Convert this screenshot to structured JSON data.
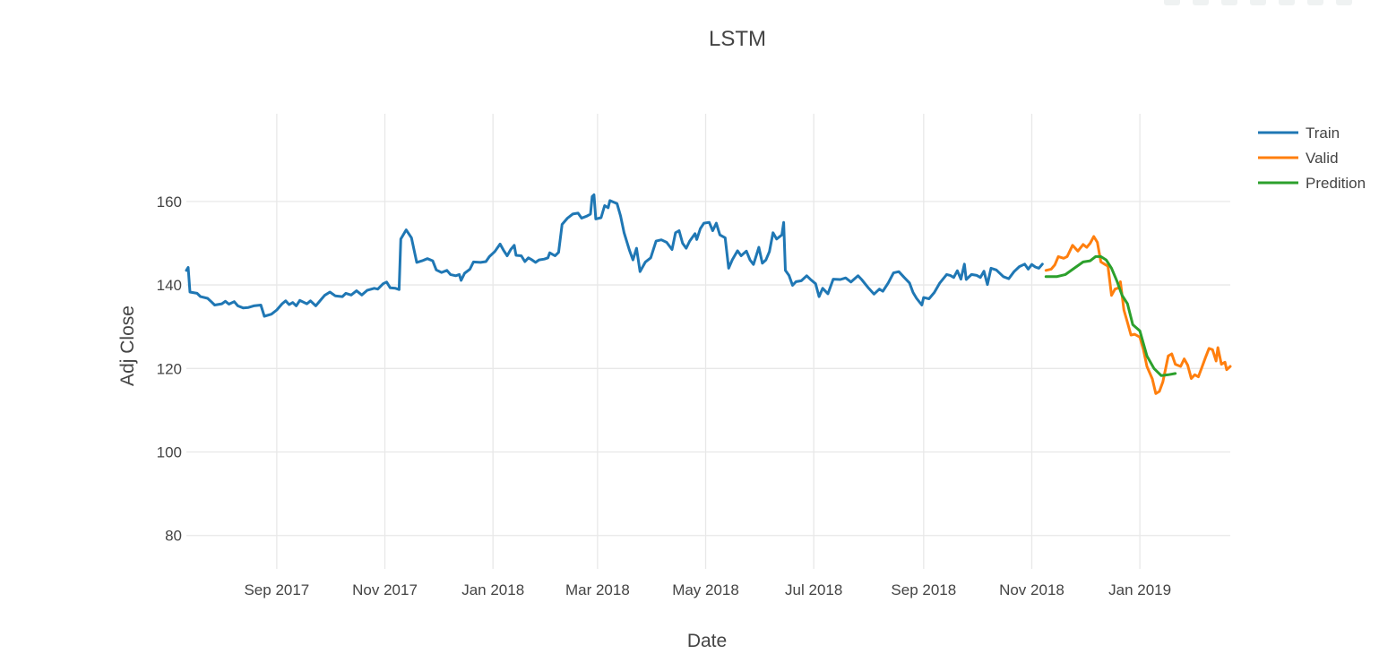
{
  "chart_data": {
    "type": "line",
    "title": "LSTM",
    "xlabel": "Date",
    "ylabel": "Adj Close",
    "x_range": [
      "2017-07-12",
      "2019-02-21"
    ],
    "ylim": [
      72,
      181
    ],
    "x_ticks": [
      {
        "date": "2017-09-01",
        "label": "Sep 2017"
      },
      {
        "date": "2017-11-01",
        "label": "Nov 2017"
      },
      {
        "date": "2018-01-01",
        "label": "Jan 2018"
      },
      {
        "date": "2018-03-01",
        "label": "Mar 2018"
      },
      {
        "date": "2018-05-01",
        "label": "May 2018"
      },
      {
        "date": "2018-07-01",
        "label": "Jul 2018"
      },
      {
        "date": "2018-09-01",
        "label": "Sep 2018"
      },
      {
        "date": "2018-11-01",
        "label": "Nov 2018"
      },
      {
        "date": "2019-01-01",
        "label": "Jan 2019"
      }
    ],
    "y_ticks": [
      80,
      100,
      120,
      140,
      160
    ],
    "grid": true,
    "legend_position": "top-right",
    "series": [
      {
        "name": "Train",
        "color": "#1f77b4",
        "points": [
          [
            "2017-07-12",
            143.5
          ],
          [
            "2017-07-13",
            144.2
          ],
          [
            "2017-07-14",
            138.3
          ],
          [
            "2017-07-18",
            138.0
          ],
          [
            "2017-07-20",
            137.2
          ],
          [
            "2017-07-24",
            136.8
          ],
          [
            "2017-07-26",
            136.0
          ],
          [
            "2017-07-28",
            135.2
          ],
          [
            "2017-08-01",
            135.5
          ],
          [
            "2017-08-03",
            136.1
          ],
          [
            "2017-08-05",
            135.4
          ],
          [
            "2017-08-08",
            136.0
          ],
          [
            "2017-08-10",
            135.0
          ],
          [
            "2017-08-13",
            134.5
          ],
          [
            "2017-08-16",
            134.6
          ],
          [
            "2017-08-19",
            135.0
          ],
          [
            "2017-08-23",
            135.2
          ],
          [
            "2017-08-25",
            132.5
          ],
          [
            "2017-08-29",
            133.0
          ],
          [
            "2017-09-01",
            134.0
          ],
          [
            "2017-09-04",
            135.5
          ],
          [
            "2017-09-06",
            136.2
          ],
          [
            "2017-09-08",
            135.3
          ],
          [
            "2017-09-10",
            135.8
          ],
          [
            "2017-09-12",
            135.0
          ],
          [
            "2017-09-14",
            136.3
          ],
          [
            "2017-09-18",
            135.5
          ],
          [
            "2017-09-20",
            136.2
          ],
          [
            "2017-09-23",
            135.0
          ],
          [
            "2017-09-26",
            136.5
          ],
          [
            "2017-09-28",
            137.5
          ],
          [
            "2017-10-01",
            138.3
          ],
          [
            "2017-10-04",
            137.4
          ],
          [
            "2017-10-08",
            137.2
          ],
          [
            "2017-10-10",
            138.0
          ],
          [
            "2017-10-13",
            137.6
          ],
          [
            "2017-10-16",
            138.6
          ],
          [
            "2017-10-19",
            137.6
          ],
          [
            "2017-10-22",
            138.7
          ],
          [
            "2017-10-26",
            139.2
          ],
          [
            "2017-10-28",
            139.0
          ],
          [
            "2017-10-31",
            140.3
          ],
          [
            "2017-11-02",
            140.7
          ],
          [
            "2017-11-04",
            139.3
          ],
          [
            "2017-11-07",
            139.2
          ],
          [
            "2017-11-09",
            138.9
          ],
          [
            "2017-11-10",
            151.0
          ],
          [
            "2017-11-13",
            153.2
          ],
          [
            "2017-11-16",
            151.3
          ],
          [
            "2017-11-19",
            145.4
          ],
          [
            "2017-11-22",
            145.8
          ],
          [
            "2017-11-25",
            146.3
          ],
          [
            "2017-11-28",
            145.8
          ],
          [
            "2017-11-30",
            143.6
          ],
          [
            "2017-12-03",
            143.0
          ],
          [
            "2017-12-06",
            143.5
          ],
          [
            "2017-12-08",
            142.5
          ],
          [
            "2017-12-11",
            142.2
          ],
          [
            "2017-12-13",
            142.5
          ],
          [
            "2017-12-14",
            141.1
          ],
          [
            "2017-12-16",
            142.8
          ],
          [
            "2017-12-19",
            143.8
          ],
          [
            "2017-12-21",
            145.5
          ],
          [
            "2017-12-25",
            145.4
          ],
          [
            "2017-12-28",
            145.6
          ],
          [
            "2017-12-30",
            146.8
          ],
          [
            "2018-01-02",
            148.0
          ],
          [
            "2018-01-05",
            149.8
          ],
          [
            "2018-01-07",
            148.3
          ],
          [
            "2018-01-09",
            147.0
          ],
          [
            "2018-01-11",
            148.5
          ],
          [
            "2018-01-13",
            149.5
          ],
          [
            "2018-01-14",
            147.1
          ],
          [
            "2018-01-17",
            147.0
          ],
          [
            "2018-01-19",
            145.6
          ],
          [
            "2018-01-21",
            146.5
          ],
          [
            "2018-01-23",
            146.0
          ],
          [
            "2018-01-25",
            145.4
          ],
          [
            "2018-01-27",
            146.0
          ],
          [
            "2018-01-30",
            146.2
          ],
          [
            "2018-02-01",
            146.5
          ],
          [
            "2018-02-02",
            147.7
          ],
          [
            "2018-02-05",
            147.0
          ],
          [
            "2018-02-07",
            147.8
          ],
          [
            "2018-02-09",
            154.5
          ],
          [
            "2018-02-12",
            156.0
          ],
          [
            "2018-02-15",
            157.0
          ],
          [
            "2018-02-18",
            157.2
          ],
          [
            "2018-02-20",
            156.0
          ],
          [
            "2018-02-23",
            156.5
          ],
          [
            "2018-02-25",
            157.0
          ],
          [
            "2018-02-26",
            161.2
          ],
          [
            "2018-02-27",
            161.6
          ],
          [
            "2018-02-28",
            155.8
          ],
          [
            "2018-03-03",
            156.1
          ],
          [
            "2018-03-05",
            159.0
          ],
          [
            "2018-03-07",
            158.5
          ],
          [
            "2018-03-08",
            160.2
          ],
          [
            "2018-03-12",
            159.5
          ],
          [
            "2018-03-14",
            156.5
          ],
          [
            "2018-03-16",
            152.5
          ],
          [
            "2018-03-19",
            148.3
          ],
          [
            "2018-03-21",
            146.0
          ],
          [
            "2018-03-23",
            148.8
          ],
          [
            "2018-03-25",
            143.2
          ],
          [
            "2018-03-28",
            145.5
          ],
          [
            "2018-03-31",
            146.5
          ],
          [
            "2018-04-03",
            150.5
          ],
          [
            "2018-04-06",
            150.8
          ],
          [
            "2018-04-09",
            150.2
          ],
          [
            "2018-04-12",
            148.5
          ],
          [
            "2018-04-14",
            152.5
          ],
          [
            "2018-04-16",
            153.0
          ],
          [
            "2018-04-18",
            150.0
          ],
          [
            "2018-04-20",
            148.8
          ],
          [
            "2018-04-22",
            150.5
          ],
          [
            "2018-04-25",
            152.3
          ],
          [
            "2018-04-26",
            150.9
          ],
          [
            "2018-04-28",
            153.5
          ],
          [
            "2018-04-30",
            154.8
          ],
          [
            "2018-05-03",
            155.0
          ],
          [
            "2018-05-05",
            153.0
          ],
          [
            "2018-05-07",
            154.8
          ],
          [
            "2018-05-09",
            152.0
          ],
          [
            "2018-05-12",
            151.3
          ],
          [
            "2018-05-14",
            144.0
          ],
          [
            "2018-05-16",
            146.0
          ],
          [
            "2018-05-19",
            148.2
          ],
          [
            "2018-05-21",
            147.0
          ],
          [
            "2018-05-24",
            148.1
          ],
          [
            "2018-05-26",
            146.0
          ],
          [
            "2018-05-28",
            144.9
          ],
          [
            "2018-05-31",
            149.0
          ],
          [
            "2018-06-02",
            145.2
          ],
          [
            "2018-06-04",
            146.0
          ],
          [
            "2018-06-06",
            148.0
          ],
          [
            "2018-06-08",
            152.5
          ],
          [
            "2018-06-10",
            151.0
          ],
          [
            "2018-06-13",
            152.0
          ],
          [
            "2018-06-14",
            155.0
          ],
          [
            "2018-06-15",
            143.5
          ],
          [
            "2018-06-17",
            142.3
          ],
          [
            "2018-06-19",
            139.9
          ],
          [
            "2018-06-21",
            140.8
          ],
          [
            "2018-06-24",
            141.0
          ],
          [
            "2018-06-27",
            142.2
          ],
          [
            "2018-06-29",
            141.4
          ],
          [
            "2018-07-02",
            140.3
          ],
          [
            "2018-07-04",
            137.2
          ],
          [
            "2018-07-06",
            139.2
          ],
          [
            "2018-07-09",
            137.9
          ],
          [
            "2018-07-12",
            141.4
          ],
          [
            "2018-07-16",
            141.3
          ],
          [
            "2018-07-19",
            141.7
          ],
          [
            "2018-07-22",
            140.7
          ],
          [
            "2018-07-26",
            142.2
          ],
          [
            "2018-07-28",
            141.3
          ],
          [
            "2018-08-01",
            139.2
          ],
          [
            "2018-08-04",
            137.8
          ],
          [
            "2018-08-07",
            139.0
          ],
          [
            "2018-08-09",
            138.5
          ],
          [
            "2018-08-12",
            140.5
          ],
          [
            "2018-08-15",
            142.9
          ],
          [
            "2018-08-18",
            143.2
          ],
          [
            "2018-08-21",
            141.8
          ],
          [
            "2018-08-24",
            140.5
          ],
          [
            "2018-08-26",
            138.2
          ],
          [
            "2018-08-28",
            136.8
          ],
          [
            "2018-08-31",
            135.2
          ],
          [
            "2018-09-01",
            137.0
          ],
          [
            "2018-09-04",
            136.7
          ],
          [
            "2018-09-07",
            138.2
          ],
          [
            "2018-09-10",
            140.4
          ],
          [
            "2018-09-14",
            142.5
          ],
          [
            "2018-09-16",
            142.3
          ],
          [
            "2018-09-18",
            141.8
          ],
          [
            "2018-09-20",
            143.4
          ],
          [
            "2018-09-22",
            141.4
          ],
          [
            "2018-09-24",
            145.0
          ],
          [
            "2018-09-25",
            141.3
          ],
          [
            "2018-09-28",
            142.5
          ],
          [
            "2018-10-01",
            142.3
          ],
          [
            "2018-10-03",
            141.8
          ],
          [
            "2018-10-05",
            143.3
          ],
          [
            "2018-10-07",
            140.1
          ],
          [
            "2018-10-09",
            144.0
          ],
          [
            "2018-10-12",
            143.6
          ],
          [
            "2018-10-16",
            142.0
          ],
          [
            "2018-10-19",
            141.5
          ],
          [
            "2018-10-22",
            143.2
          ],
          [
            "2018-10-25",
            144.4
          ],
          [
            "2018-10-28",
            145.0
          ],
          [
            "2018-10-30",
            143.8
          ],
          [
            "2018-11-01",
            144.9
          ],
          [
            "2018-11-03",
            144.3
          ],
          [
            "2018-11-05",
            144.0
          ],
          [
            "2018-11-07",
            145.0
          ]
        ]
      },
      {
        "name": "Valid",
        "color": "#ff7f0e",
        "points": [
          [
            "2018-11-09",
            143.5
          ],
          [
            "2018-11-12",
            143.8
          ],
          [
            "2018-11-14",
            144.8
          ],
          [
            "2018-11-16",
            146.8
          ],
          [
            "2018-11-19",
            146.4
          ],
          [
            "2018-11-21",
            146.8
          ],
          [
            "2018-11-24",
            149.5
          ],
          [
            "2018-11-27",
            148.1
          ],
          [
            "2018-11-30",
            149.7
          ],
          [
            "2018-12-02",
            149.0
          ],
          [
            "2018-12-04",
            150.0
          ],
          [
            "2018-12-06",
            151.6
          ],
          [
            "2018-12-08",
            150.2
          ],
          [
            "2018-12-10",
            145.5
          ],
          [
            "2018-12-12",
            145.0
          ],
          [
            "2018-12-14",
            144.5
          ],
          [
            "2018-12-16",
            137.5
          ],
          [
            "2018-12-18",
            139.0
          ],
          [
            "2018-12-20",
            139.3
          ],
          [
            "2018-12-21",
            140.8
          ],
          [
            "2018-12-23",
            134.0
          ],
          [
            "2018-12-25",
            131.0
          ],
          [
            "2018-12-27",
            128.0
          ],
          [
            "2018-12-29",
            128.2
          ],
          [
            "2019-01-01",
            127.5
          ],
          [
            "2019-01-03",
            124.5
          ],
          [
            "2019-01-05",
            120.5
          ],
          [
            "2019-01-08",
            117.5
          ],
          [
            "2019-01-10",
            114.0
          ],
          [
            "2019-01-12",
            114.5
          ],
          [
            "2019-01-14",
            116.8
          ],
          [
            "2019-01-17",
            123.0
          ],
          [
            "2019-01-19",
            123.5
          ],
          [
            "2019-01-21",
            121.0
          ],
          [
            "2019-01-24",
            120.5
          ],
          [
            "2019-01-26",
            122.3
          ],
          [
            "2019-01-28",
            120.8
          ],
          [
            "2019-01-30",
            117.6
          ],
          [
            "2019-02-01",
            118.5
          ],
          [
            "2019-02-03",
            118.0
          ],
          [
            "2019-02-05",
            120.3
          ],
          [
            "2019-02-07",
            122.6
          ],
          [
            "2019-02-09",
            124.8
          ],
          [
            "2019-02-11",
            124.5
          ],
          [
            "2019-02-13",
            121.8
          ],
          [
            "2019-02-14",
            125.0
          ],
          [
            "2019-02-16",
            121.0
          ],
          [
            "2019-02-18",
            121.5
          ],
          [
            "2019-02-19",
            119.7
          ],
          [
            "2019-02-21",
            120.5
          ]
        ]
      },
      {
        "name": "Predition",
        "color": "#2ca02c",
        "points": [
          [
            "2018-11-09",
            142.0
          ],
          [
            "2018-11-15",
            142.0
          ],
          [
            "2018-11-20",
            142.5
          ],
          [
            "2018-11-25",
            144.0
          ],
          [
            "2018-11-30",
            145.5
          ],
          [
            "2018-12-04",
            145.8
          ],
          [
            "2018-12-07",
            146.8
          ],
          [
            "2018-12-10",
            146.8
          ],
          [
            "2018-12-13",
            146.0
          ],
          [
            "2018-12-16",
            144.0
          ],
          [
            "2018-12-19",
            141.0
          ],
          [
            "2018-12-22",
            137.5
          ],
          [
            "2018-12-25",
            135.5
          ],
          [
            "2018-12-28",
            130.5
          ],
          [
            "2019-01-01",
            129.0
          ],
          [
            "2019-01-05",
            123.0
          ],
          [
            "2019-01-09",
            120.0
          ],
          [
            "2019-01-13",
            118.3
          ],
          [
            "2019-01-17",
            118.5
          ],
          [
            "2019-01-21",
            118.8
          ]
        ]
      }
    ]
  }
}
